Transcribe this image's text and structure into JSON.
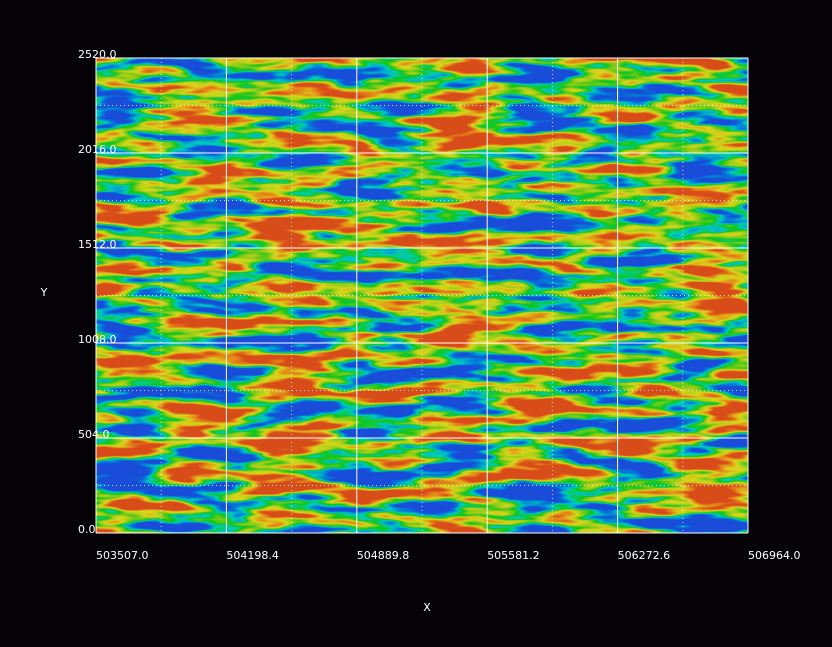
{
  "chart_data": {
    "type": "heatmap",
    "x_label": "X",
    "y_label": "Y",
    "xlim": [
      503507.0,
      506964.0
    ],
    "xticks": [
      {
        "value": 503507.0,
        "label": "503507.0"
      },
      {
        "value": 504198.4,
        "label": "504198.4"
      },
      {
        "value": 504889.8,
        "label": "504889.8"
      },
      {
        "value": 505581.2,
        "label": "505581.2"
      },
      {
        "value": 506272.6,
        "label": "506272.6"
      },
      {
        "value": 506964.0,
        "label": "506964.0"
      }
    ],
    "ylim": [
      0.0,
      2520.0
    ],
    "yticks": [
      {
        "value": 0.0,
        "label": "0.0"
      },
      {
        "value": 504.0,
        "label": "504.0"
      },
      {
        "value": 1008.0,
        "label": "1008.0"
      },
      {
        "value": 1512.0,
        "label": "1512.0"
      },
      {
        "value": 2016.0,
        "label": "2016.0"
      },
      {
        "value": 2520.0,
        "label": "2520.0"
      }
    ],
    "grid": true,
    "minor_grid": true
  }
}
